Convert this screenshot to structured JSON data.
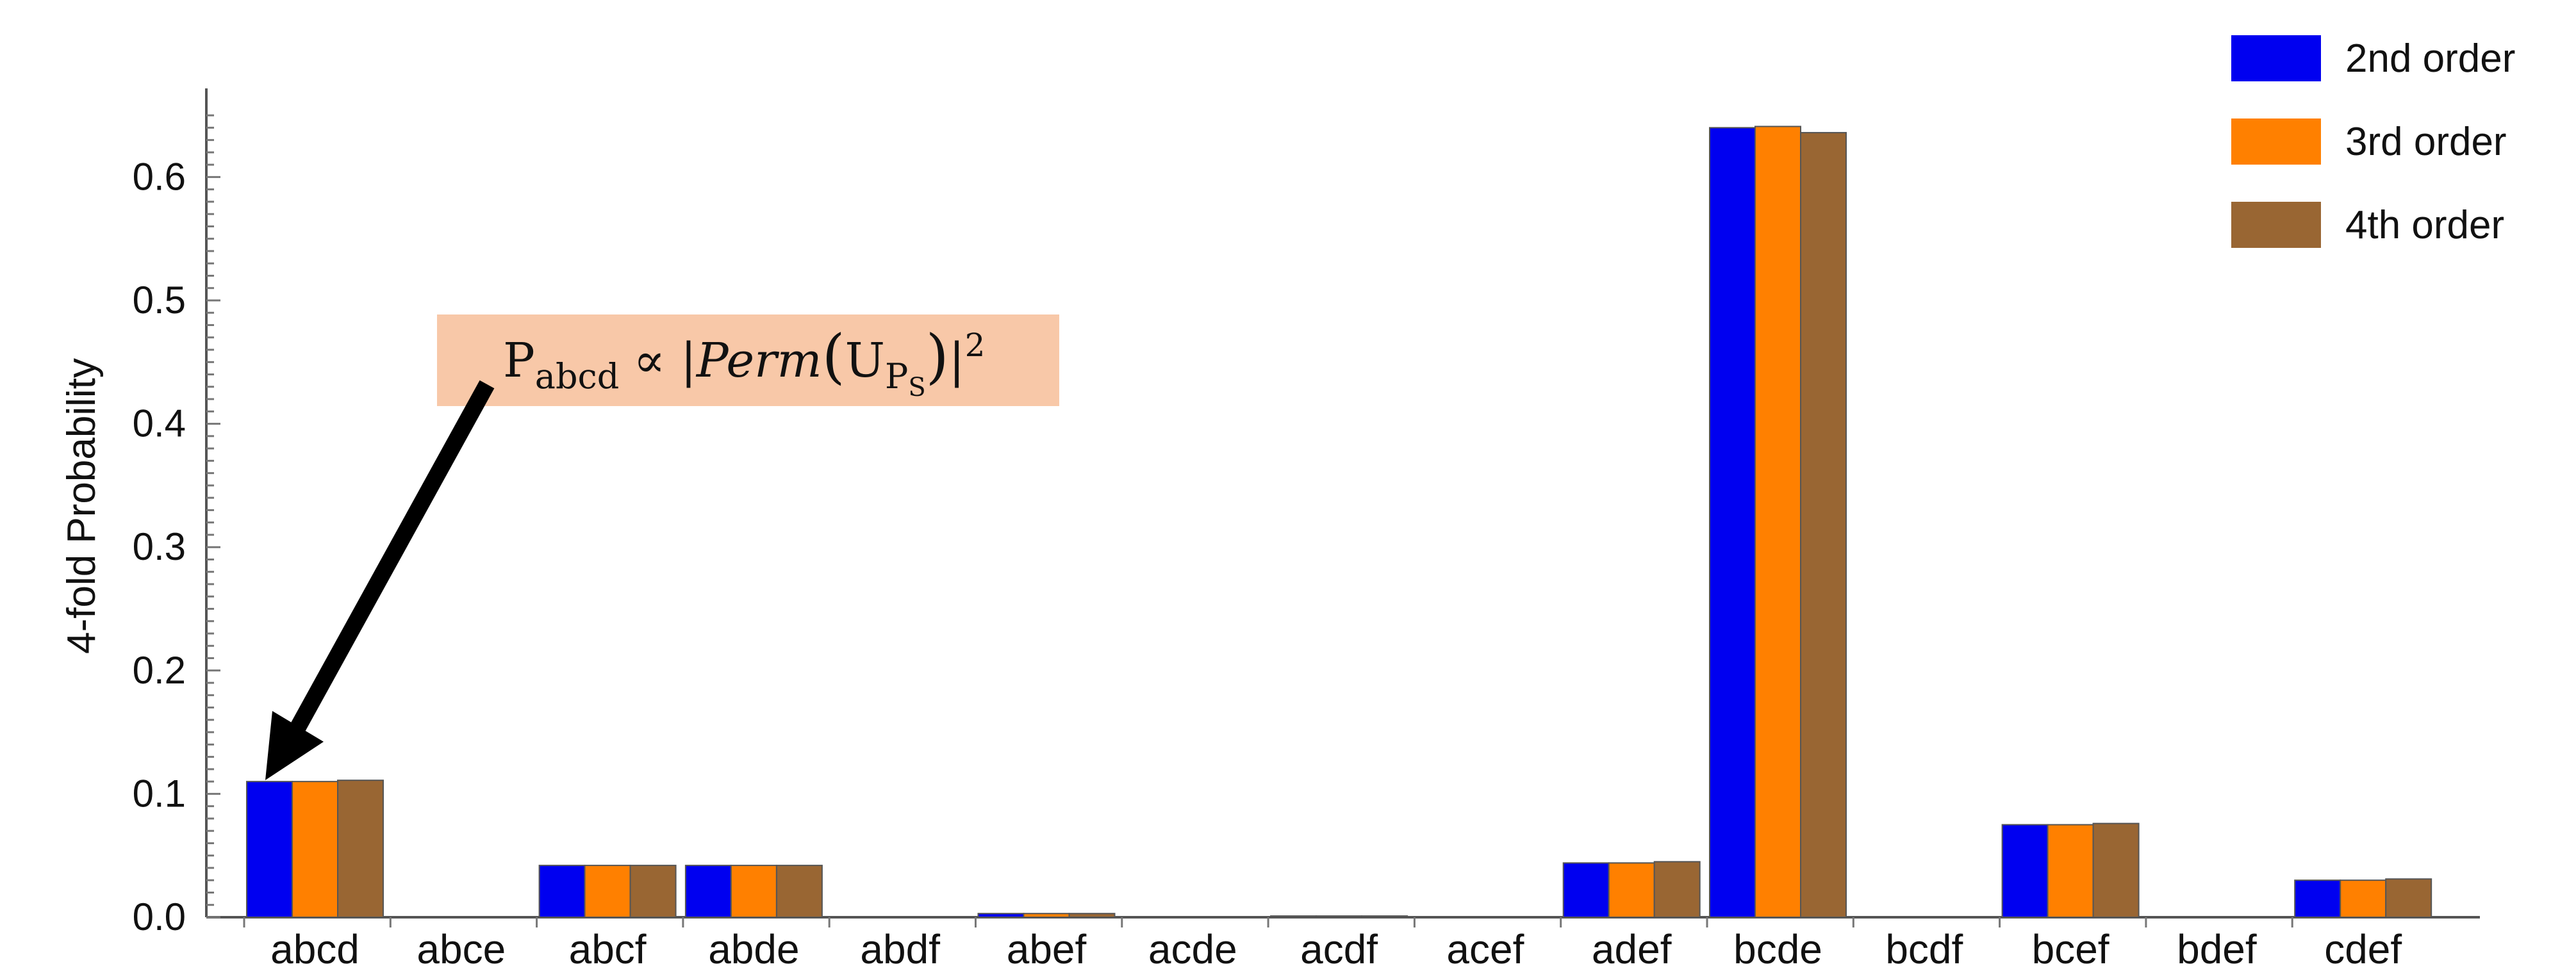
{
  "chart_data": {
    "type": "bar",
    "title": "",
    "xlabel": "",
    "ylabel": "4-fold  Probability",
    "ylim": [
      0,
      0.65
    ],
    "yticks": [
      "0.0",
      "0.1",
      "0.2",
      "0.3",
      "0.4",
      "0.5",
      "0.6"
    ],
    "ytick_values": [
      0,
      0.1,
      0.2,
      0.3,
      0.4,
      0.5,
      0.6
    ],
    "grid": false,
    "legend_position": "top-right",
    "categories": [
      "abcd",
      "abce",
      "abcf",
      "abde",
      "abdf",
      "abef",
      "acde",
      "acdf",
      "acef",
      "adef",
      "bcde",
      "bcdf",
      "bcef",
      "bdef",
      "cdef"
    ],
    "series": [
      {
        "name": "2nd order",
        "color": "#0000f0",
        "values": [
          0.11,
          0,
          0.042,
          0.042,
          0,
          0.003,
          0,
          0.001,
          0,
          0.044,
          0.64,
          0,
          0.075,
          0,
          0.03
        ]
      },
      {
        "name": "3rd order",
        "color": "#ff8000",
        "values": [
          0.11,
          0,
          0.042,
          0.042,
          0,
          0.003,
          0,
          0.001,
          0,
          0.044,
          0.641,
          0,
          0.075,
          0,
          0.03
        ]
      },
      {
        "name": "4th order",
        "color": "#996633",
        "values": [
          0.111,
          0,
          0.042,
          0.042,
          0,
          0.003,
          0,
          0.001,
          0,
          0.045,
          0.636,
          0,
          0.076,
          0,
          0.031
        ]
      }
    ],
    "annotation": {
      "symbol": "P",
      "subscript": "abcd",
      "relation": "∝ |",
      "function": "Perm",
      "argument": "U",
      "argument_subscript": "P",
      "argument_subsubscript": "S",
      "closing": "|",
      "exponent": "2",
      "box_color": "#f8c8a8",
      "target_category": "abcd"
    }
  }
}
